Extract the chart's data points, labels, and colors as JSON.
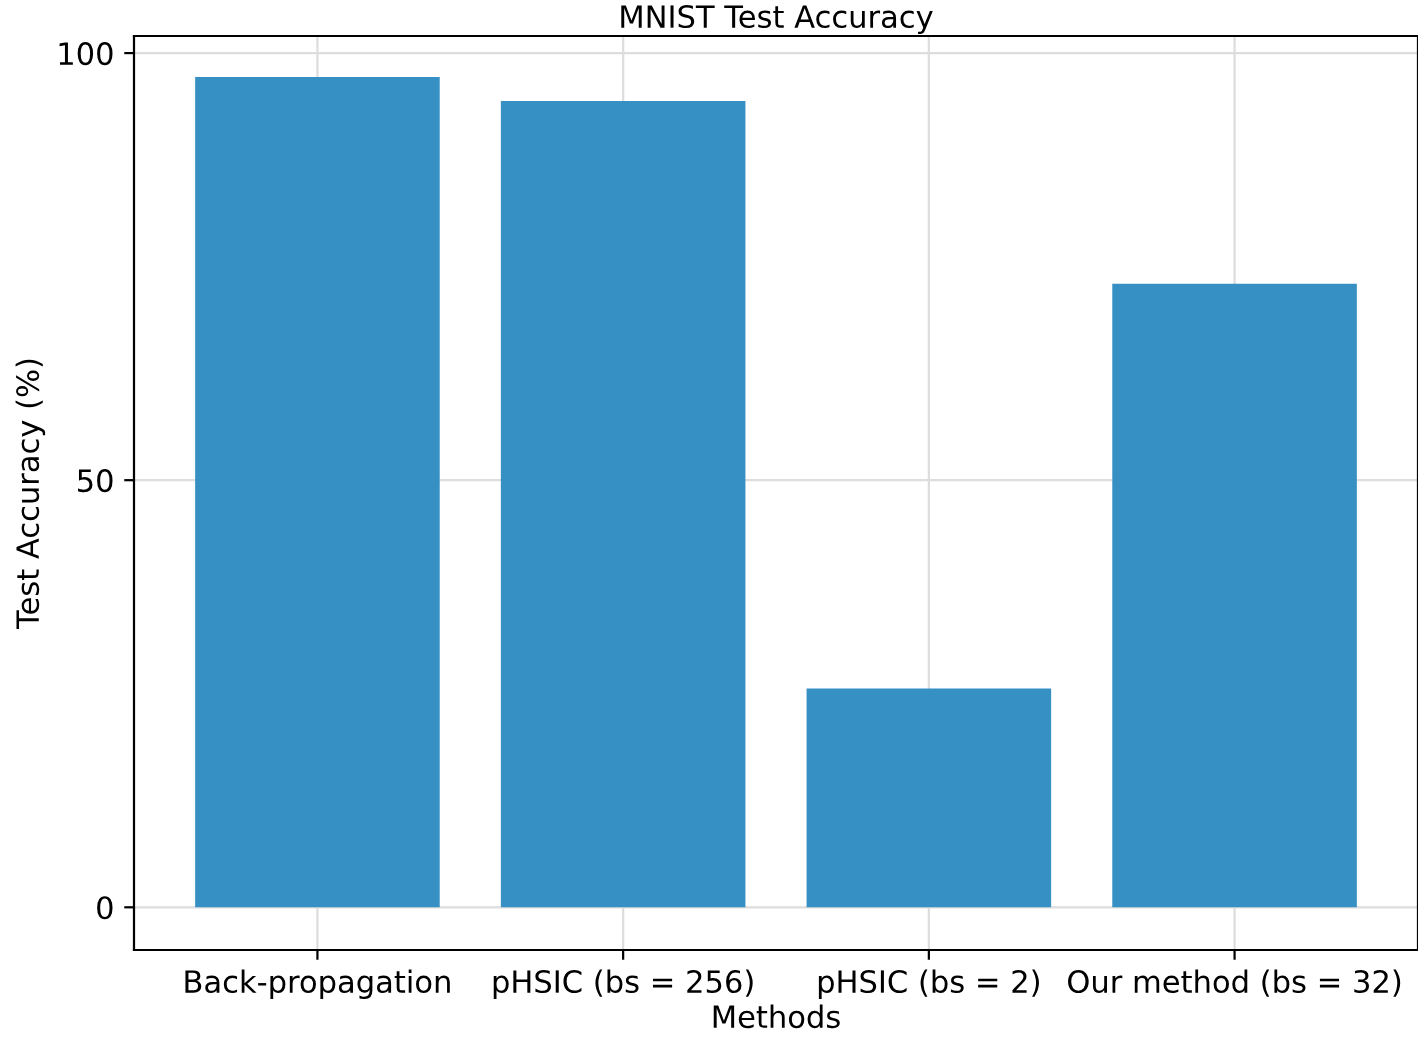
{
  "chart_data": {
    "type": "bar",
    "title": "MNIST Test Accuracy",
    "xlabel": "Methods",
    "ylabel": "Test Accuracy (%)",
    "categories": [
      "Back-propagation",
      "pHSIC (bs = 256)",
      "pHSIC (bs = 2)",
      "Our method (bs = 32)"
    ],
    "values": [
      97.2,
      94.4,
      25.6,
      73.0
    ],
    "color": "#3690c3",
    "ylim": [
      -5,
      102
    ],
    "yticks": [
      0,
      50,
      100
    ],
    "grid": true
  }
}
